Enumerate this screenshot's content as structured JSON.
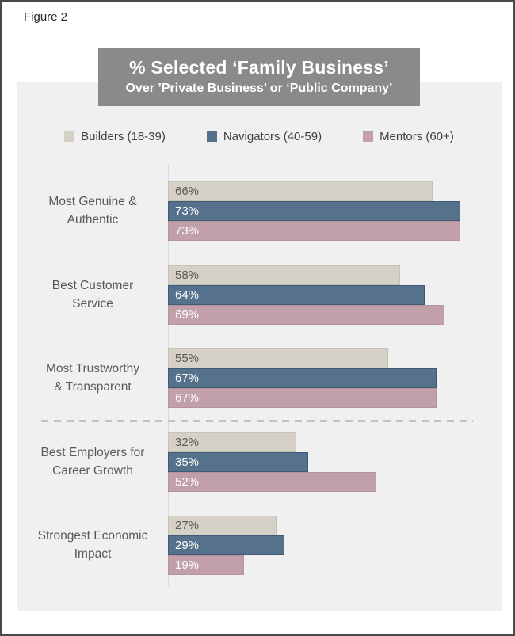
{
  "figure_label": "Figure 2",
  "title_box": {
    "title": "% Selected ‘Family Business’",
    "subtitle": "Over ’Private Business’ or ‘Public Company’"
  },
  "legend": [
    {
      "label": "Builders (18-39)",
      "color": "#d6d1c6"
    },
    {
      "label": "Navigators (40-59)",
      "color": "#56718c"
    },
    {
      "label": "Mentors (60+)",
      "color": "#c1a0a9"
    }
  ],
  "chart_data": {
    "type": "bar",
    "orientation": "horizontal",
    "title": "% Selected ‘Family Business’",
    "subtitle": "Over ’Private Business’ or ‘Public Company’",
    "categories": [
      "Most Genuine & Authentic",
      "Best Customer Service",
      "Most Trustworthy & Transparent",
      "Best Employers for Career Growth",
      "Strongest Economic Impact"
    ],
    "category_lines": [
      [
        "Most Genuine &",
        "Authentic"
      ],
      [
        "Best Customer",
        "Service"
      ],
      [
        "Most Trustworthy",
        "& Transparent"
      ],
      [
        "Best Employers for",
        "Career Growth"
      ],
      [
        "Strongest Economic",
        "Impact"
      ]
    ],
    "series": [
      {
        "name": "Builders (18-39)",
        "color": "#d6d1c6",
        "border_color": "#c7c2b6",
        "label_color": "#595959",
        "values": [
          66,
          58,
          55,
          32,
          27
        ]
      },
      {
        "name": "Navigators (40-59)",
        "color": "#56718c",
        "border_color": "#3e5a77",
        "label_color": "#ffffff",
        "values": [
          73,
          64,
          67,
          35,
          29
        ]
      },
      {
        "name": "Mentors (60+)",
        "color": "#c1a0a9",
        "border_color": "#b4939d",
        "label_color": "#ffffff",
        "values": [
          73,
          69,
          67,
          52,
          19
        ]
      }
    ],
    "value_suffix": "%",
    "xlim": [
      0,
      83
    ],
    "grid": false,
    "legend_position": "top",
    "separator_after_category_index": 2
  },
  "colors": {
    "panel_background": "#f0f0f0",
    "title_box_background": "#8a8a8a",
    "title_text": "#ffffff",
    "axis_line": "#d9d9d9",
    "dashed_separator": "#c2c2c2",
    "figure_border": "#4a4a4a",
    "category_label_text": "#595959",
    "legend_text": "#404040"
  }
}
